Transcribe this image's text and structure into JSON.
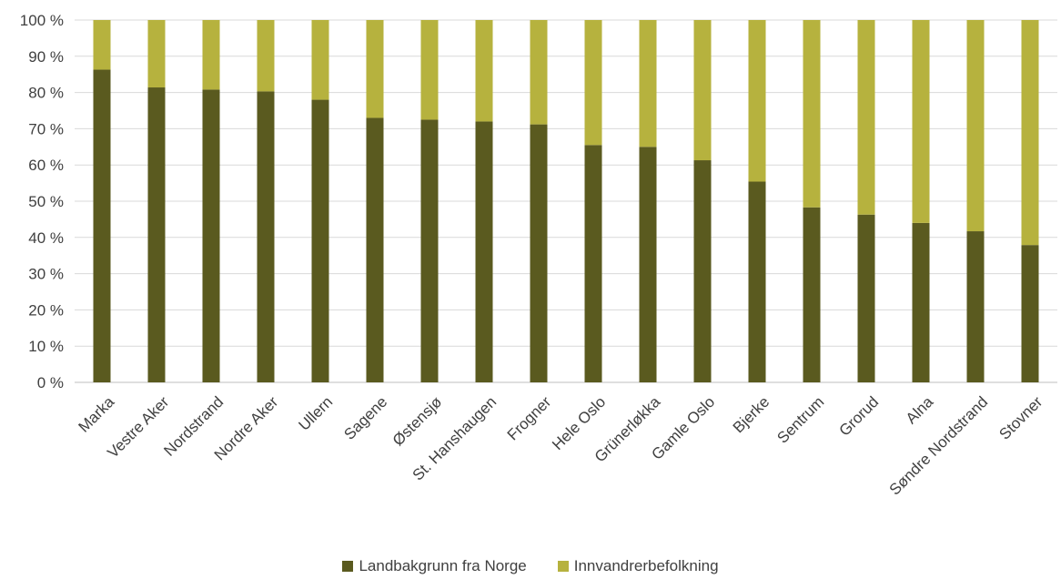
{
  "chart_data": {
    "type": "bar",
    "stacked": true,
    "categories": [
      "Marka",
      "Vestre Aker",
      "Nordstrand",
      "Nordre Aker",
      "Ullern",
      "Sagene",
      "Østensjø",
      "St. Hanshaugen",
      "Frogner",
      "Hele Oslo",
      "Grünerløkka",
      "Gamle Oslo",
      "Bjerke",
      "Sentrum",
      "Grorud",
      "Alna",
      "Søndre Nordstrand",
      "Stovner"
    ],
    "series": [
      {
        "name": "Landbakgrunn fra Norge",
        "color": "#5a5a1f",
        "values": [
          86.3,
          81.4,
          80.8,
          80.3,
          78.0,
          73.0,
          72.5,
          72.0,
          71.2,
          65.5,
          65.0,
          61.3,
          55.4,
          48.3,
          46.3,
          44.0,
          41.7,
          37.9
        ]
      },
      {
        "name": "Innvandrerbefolkning",
        "color": "#b6b23e",
        "values": [
          13.7,
          18.6,
          19.2,
          19.7,
          22.0,
          27.0,
          27.5,
          28.0,
          28.8,
          34.5,
          35.0,
          38.7,
          44.6,
          51.7,
          53.7,
          56.0,
          58.3,
          62.1
        ]
      }
    ],
    "ylim": [
      0,
      100
    ],
    "yticks": [
      "0 %",
      "10 %",
      "20 %",
      "30 %",
      "40 %",
      "50 %",
      "60 %",
      "70 %",
      "80 %",
      "90 %",
      "100 %"
    ],
    "grid": true,
    "legend": "bottom"
  }
}
